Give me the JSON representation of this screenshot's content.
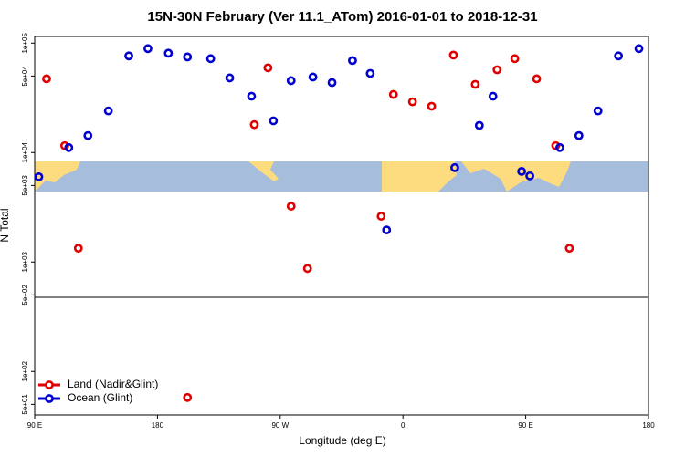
{
  "chart_data": {
    "type": "scatter",
    "title": "15N-30N February (Ver 11.1_ATom)   2016-01-01 to 2018-12-31",
    "x_label": "Longitude (deg E)",
    "y_label": "N Total",
    "ylog": true,
    "grid": false,
    "legend": "bottom-left",
    "xlim": [
      90,
      540
    ],
    "ylim": [
      40,
      115000
    ],
    "xticks": [
      {
        "value": 90,
        "label": "90 E"
      },
      {
        "value": 180,
        "label": "180"
      },
      {
        "value": 270,
        "label": "90 W"
      },
      {
        "value": 360,
        "label": "0"
      },
      {
        "value": 450,
        "label": "90 E"
      },
      {
        "value": 540,
        "label": "180"
      }
    ],
    "yticks": [
      {
        "value": 100000,
        "label": "1e+05"
      },
      {
        "value": 50000,
        "label": "5e+04"
      },
      {
        "value": 10000,
        "label": "1e+04"
      },
      {
        "value": 5000,
        "label": "5e+03"
      },
      {
        "value": 1000,
        "label": "1e+03"
      },
      {
        "value": 500,
        "label": "5e+02"
      },
      {
        "value": 100,
        "label": "1e+02"
      },
      {
        "value": 50,
        "label": "5e+01"
      }
    ],
    "series": [
      {
        "name": "Land (Nadir&Glint)",
        "color": "#e00000",
        "x": [
          98.7,
          112,
          122,
          251,
          261,
          278,
          290,
          344,
          353,
          367,
          381,
          397,
          413,
          429,
          442,
          458,
          472,
          482,
          202
        ],
        "values": [
          47200,
          11560,
          1336,
          17990,
          59500,
          3236,
          873,
          2620,
          33970,
          29100,
          26500,
          77800,
          42000,
          57100,
          72100,
          47200,
          11560,
          1336,
          57.8
        ]
      },
      {
        "name": "Ocean (Glint)",
        "color": "#0000d0",
        "x": [
          93,
          115,
          129,
          144,
          159,
          173,
          188,
          202,
          219,
          233,
          249,
          265,
          278,
          294,
          308,
          323,
          336,
          348,
          398,
          416,
          426,
          447,
          453,
          475,
          489,
          503,
          518,
          533
        ],
        "values": [
          6000,
          11100,
          14300,
          24000,
          76400,
          89100,
          80900,
          74800,
          72100,
          48100,
          32700,
          19500,
          45400,
          49000,
          43600,
          69300,
          52900,
          1963,
          7280,
          17700,
          32700,
          6730,
          6120,
          11100,
          14300,
          24000,
          76400,
          89100
        ]
      }
    ]
  }
}
